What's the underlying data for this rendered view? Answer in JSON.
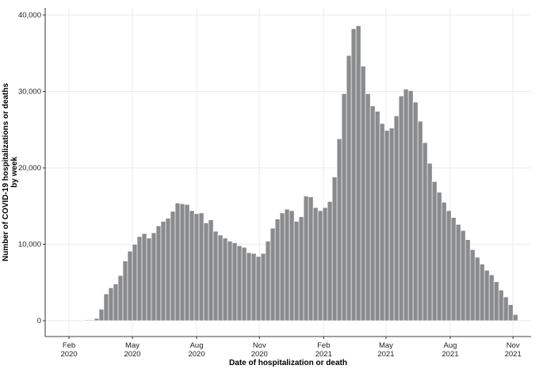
{
  "chart_data": {
    "type": "bar",
    "x_label": "Date of hospitalization or death",
    "y_label": [
      "Number of COVID-19 hospitalizations or deaths",
      "by week"
    ],
    "color": "#8a8b8d",
    "grid": true,
    "x": [
      0,
      1,
      2,
      3,
      4,
      5,
      6,
      7,
      8,
      9,
      10,
      11,
      12,
      13,
      14,
      15,
      16,
      17,
      18,
      19,
      20,
      21,
      22,
      23,
      24,
      25,
      26,
      27,
      28,
      29,
      30,
      31,
      32,
      33,
      34,
      35,
      36,
      37,
      38,
      39,
      40,
      41,
      42,
      43,
      44,
      45,
      46,
      47,
      48,
      49,
      50,
      51,
      52,
      53,
      54,
      55,
      56,
      57,
      58,
      59,
      60,
      61,
      62,
      63,
      64,
      65,
      66,
      67,
      68,
      69,
      70,
      71,
      72,
      73,
      74,
      75,
      76,
      77,
      78,
      79,
      80,
      81,
      82,
      83,
      84,
      85,
      86,
      87,
      88,
      89,
      90
    ],
    "values": [
      100,
      100,
      300,
      1500,
      3500,
      4300,
      4800,
      5900,
      7800,
      9100,
      10000,
      11000,
      11400,
      10800,
      11500,
      12400,
      13000,
      13400,
      14300,
      15400,
      15300,
      15200,
      14400,
      14000,
      14100,
      12800,
      13200,
      11700,
      11200,
      10800,
      10400,
      10200,
      9800,
      9600,
      8900,
      8800,
      8400,
      8800,
      10400,
      12100,
      13300,
      14100,
      14600,
      14400,
      13000,
      13600,
      16300,
      16200,
      14800,
      14400,
      14800,
      15600,
      18800,
      23800,
      29700,
      34700,
      38200,
      38600,
      33300,
      29700,
      28100,
      27400,
      25800,
      24900,
      25200,
      26800,
      29400,
      30300,
      30100,
      28600,
      26100,
      23300,
      20600,
      18200,
      16800,
      15500,
      14400,
      13500,
      12600,
      11800,
      10600,
      9300,
      8300,
      7400,
      6600,
      6000,
      5100,
      4000,
      3100,
      2100,
      800
    ],
    "xlim": [
      -8.83,
      93.3
    ],
    "xticks": [
      {
        "value": -3.83,
        "label": "Feb 2020"
      },
      {
        "value": 9.5,
        "label": "May 2020"
      },
      {
        "value": 23,
        "label": "Aug 2020"
      },
      {
        "value": 36.2,
        "label": "Nov 2020"
      },
      {
        "value": 49.7,
        "label": "Feb 2021"
      },
      {
        "value": 62.8,
        "label": "May 2021"
      },
      {
        "value": 76.3,
        "label": "Aug 2021"
      },
      {
        "value": 89.5,
        "label": "Nov 2021"
      }
    ],
    "ylim": [
      -2073,
      40930
    ],
    "yticks": [
      0,
      {
        "value": 10000,
        "label": "10,000"
      },
      {
        "value": 20000,
        "label": "20,000"
      },
      {
        "value": 30000,
        "label": "30,000"
      },
      {
        "value": 40000,
        "label": "40,000"
      }
    ]
  }
}
